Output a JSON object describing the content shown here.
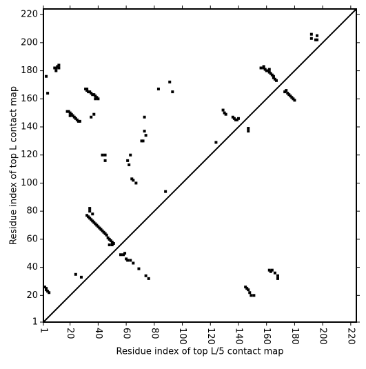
{
  "chart_data": {
    "type": "scatter",
    "xlabel": "Residue index of top L/5 contact map",
    "ylabel": "Residue index of top L contact map",
    "color": "#000000",
    "xlim": [
      1,
      224
    ],
    "ylim": [
      1,
      224
    ],
    "xticks": [
      1,
      20,
      40,
      60,
      80,
      100,
      120,
      140,
      160,
      180,
      200,
      220
    ],
    "yticks": [
      1,
      20,
      40,
      60,
      80,
      100,
      120,
      140,
      160,
      180,
      200,
      220
    ],
    "x": [
      9,
      10,
      11,
      12,
      10,
      12,
      3,
      4,
      31,
      32,
      32,
      33,
      34,
      35,
      36,
      37,
      38,
      39,
      40,
      38,
      18,
      19,
      20,
      21,
      22,
      23,
      24,
      25,
      26,
      27,
      20,
      35,
      37,
      43,
      45,
      45,
      61,
      62,
      63,
      64,
      65,
      67,
      73,
      73,
      74,
      71,
      72,
      83,
      91,
      93,
      88,
      124,
      129,
      130,
      131,
      136,
      137,
      138,
      139,
      140,
      147,
      147,
      156,
      158,
      158,
      159,
      160,
      161,
      162,
      163,
      164,
      165,
      166,
      167,
      162,
      165,
      173,
      174,
      175,
      176,
      177,
      178,
      179,
      180,
      192,
      192,
      195,
      196,
      196,
      2,
      3,
      3,
      4,
      5,
      24,
      28,
      32,
      33,
      34,
      35,
      36,
      37,
      38,
      39,
      40,
      41,
      42,
      43,
      44,
      45,
      46,
      47,
      48,
      49,
      50,
      51,
      34,
      34,
      36,
      48,
      50,
      56,
      58,
      59,
      60,
      61,
      63,
      65,
      69,
      74,
      76,
      145,
      146,
      147,
      148,
      149,
      151,
      162,
      163,
      164,
      166,
      168,
      168
    ],
    "y": [
      182,
      182,
      183,
      184,
      180,
      182,
      176,
      164,
      167,
      167,
      166,
      165,
      165,
      164,
      163,
      163,
      162,
      161,
      160,
      160,
      151,
      151,
      150,
      149,
      148,
      147,
      146,
      145,
      144,
      144,
      148,
      147,
      149,
      120,
      120,
      116,
      116,
      113,
      120,
      103,
      102,
      100,
      147,
      137,
      134,
      130,
      130,
      167,
      172,
      165,
      94,
      129,
      152,
      150,
      149,
      147,
      146,
      145,
      145,
      146,
      139,
      137,
      182,
      183,
      182,
      181,
      180,
      180,
      179,
      178,
      177,
      176,
      174,
      173,
      181,
      175,
      165,
      166,
      164,
      163,
      162,
      161,
      160,
      159,
      206,
      203,
      202,
      202,
      205,
      26,
      25,
      24,
      23,
      22,
      35,
      33,
      77,
      76,
      75,
      74,
      73,
      72,
      71,
      70,
      69,
      68,
      67,
      66,
      65,
      64,
      63,
      61,
      60,
      59,
      58,
      57,
      82,
      80,
      78,
      56,
      56,
      49,
      49,
      50,
      46,
      45,
      45,
      43,
      39,
      34,
      32,
      26,
      25,
      24,
      22,
      20,
      20,
      38,
      37,
      38,
      36,
      34,
      32
    ]
  }
}
